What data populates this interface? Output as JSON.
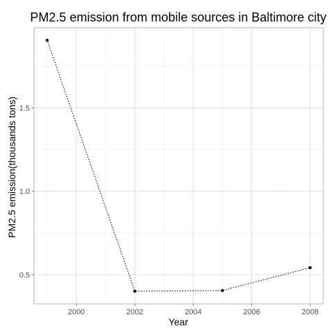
{
  "chart_data": {
    "type": "line",
    "title": "PM2.5 emission from mobile sources in Baltimore city",
    "xlabel": "Year",
    "ylabel": "PM2.5 emission(thousands tons)",
    "x": [
      1999,
      2002,
      2005,
      2008
    ],
    "series": [
      {
        "values": [
          1.905,
          0.401,
          0.405,
          0.542
        ]
      }
    ],
    "xlim": [
      1998.55,
      2008.45
    ],
    "ylim": [
      0.325,
      1.98
    ],
    "x_ticks": [
      2000,
      2002,
      2004,
      2006,
      2008
    ],
    "x_tick_labels": [
      "2000",
      "2002",
      "2004",
      "2006",
      "2008"
    ],
    "y_ticks": [
      0.5,
      1.0,
      1.5
    ],
    "y_tick_labels": [
      "0.5",
      "1.0",
      "1.5"
    ],
    "x_minor_ticks": [
      1999,
      2001,
      2003,
      2005,
      2007
    ],
    "y_minor_ticks": [
      0.75,
      1.25,
      1.75
    ],
    "grid": true,
    "theme": "light",
    "line_style": "dotted",
    "marker": "point",
    "colors": {
      "line": "#000000",
      "point": "#000000",
      "grid_major": "#d9d9d9",
      "grid_minor": "#efefef",
      "panel_border": "#b3b3b3",
      "tick_text": "#4d4d4d"
    }
  }
}
